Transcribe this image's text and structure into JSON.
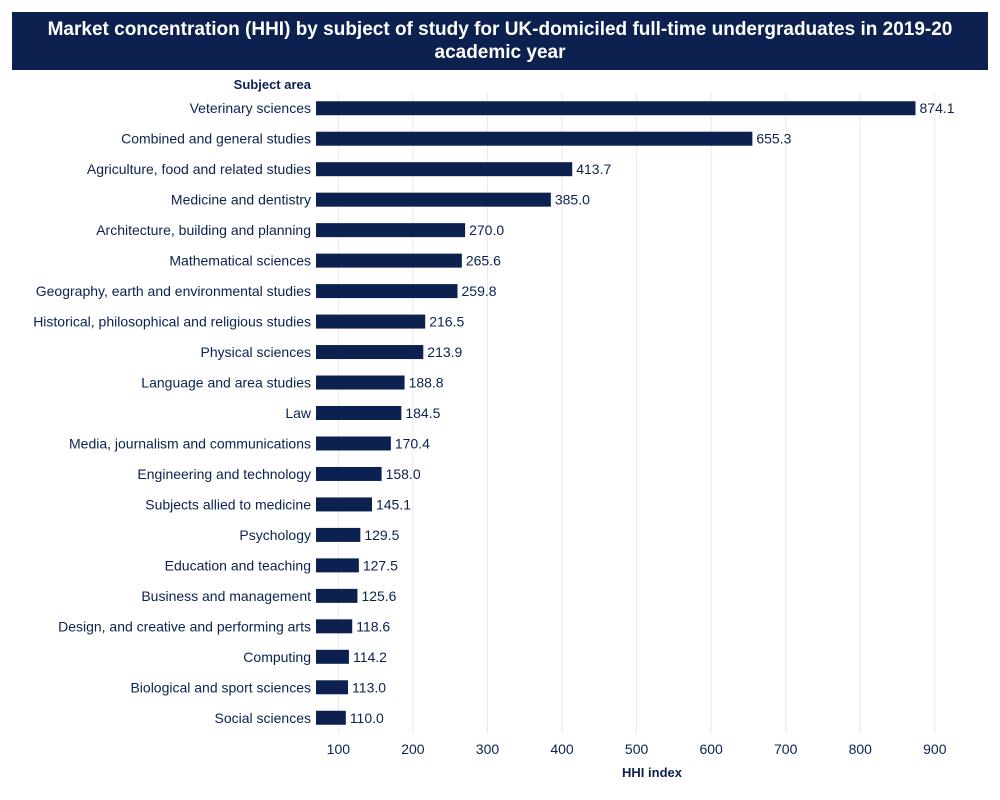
{
  "chart_data": {
    "type": "bar",
    "orientation": "horizontal",
    "title": "Market concentration (HHI) by subject of study for UK-domiciled full-time undergraduates in 2019-20 academic year",
    "ylabel": "Subject area",
    "xlabel": "HHI index",
    "xlim": [
      70,
      970
    ],
    "xticks": [
      100,
      200,
      300,
      400,
      500,
      600,
      700,
      800,
      900
    ],
    "grid": "vertical",
    "bar_color": "#0c2150",
    "categories": [
      "Veterinary sciences",
      "Combined and general studies",
      "Agriculture, food and related studies",
      "Medicine and dentistry",
      "Architecture, building and planning",
      "Mathematical sciences",
      "Geography, earth and environmental studies",
      "Historical, philosophical and religious studies",
      "Physical sciences",
      "Language and area studies",
      "Law",
      "Media, journalism and communications",
      "Engineering and technology",
      "Subjects allied to medicine",
      "Psychology",
      "Education and teaching",
      "Business and management",
      "Design, and creative and performing arts",
      "Computing",
      "Biological and sport sciences",
      "Social sciences"
    ],
    "values": [
      874.1,
      655.3,
      413.7,
      385.0,
      270.0,
      265.6,
      259.8,
      216.5,
      213.9,
      188.8,
      184.5,
      170.4,
      158.0,
      145.1,
      129.5,
      127.5,
      125.6,
      118.6,
      114.2,
      113.0,
      110.0
    ],
    "value_labels": [
      "874.1",
      "655.3",
      "413.7",
      "385.0",
      "270.0",
      "265.6",
      "259.8",
      "216.5",
      "213.9",
      "188.8",
      "184.5",
      "170.4",
      "158.0",
      "145.1",
      "129.5",
      "127.5",
      "125.6",
      "118.6",
      "114.2",
      "113.0",
      "110.0"
    ]
  }
}
